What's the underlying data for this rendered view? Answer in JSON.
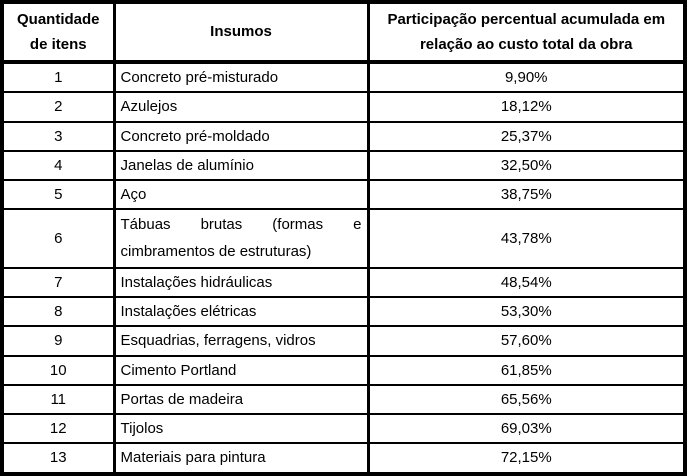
{
  "table": {
    "headers": [
      "Quantidade de itens",
      "Insumos",
      "Participação percentual acumulada em relação ao custo total da obra"
    ],
    "rows": [
      {
        "qty": "1",
        "insumo": "Concreto pré-misturado",
        "pct": "9,90%"
      },
      {
        "qty": "2",
        "insumo": "Azulejos",
        "pct": "18,12%"
      },
      {
        "qty": "3",
        "insumo": "Concreto pré-moldado",
        "pct": "25,37%"
      },
      {
        "qty": "4",
        "insumo": "Janelas de alumínio",
        "pct": "32,50%"
      },
      {
        "qty": "5",
        "insumo": "Aço",
        "pct": "38,75%"
      },
      {
        "qty": "6",
        "insumo": "Tábuas brutas (formas e cimbramentos de estruturas)",
        "pct": "43,78%"
      },
      {
        "qty": "7",
        "insumo": "Instalações hidráulicas",
        "pct": "48,54%"
      },
      {
        "qty": "8",
        "insumo": "Instalações elétricas",
        "pct": "53,30%"
      },
      {
        "qty": "9",
        "insumo": "Esquadrias, ferragens, vidros",
        "pct": "57,60%"
      },
      {
        "qty": "10",
        "insumo": "Cimento Portland",
        "pct": "61,85%"
      },
      {
        "qty": "11",
        "insumo": "Portas de madeira",
        "pct": "65,56%"
      },
      {
        "qty": "12",
        "insumo": "Tijolos",
        "pct": "69,03%"
      },
      {
        "qty": "13",
        "insumo": "Materiais para pintura",
        "pct": "72,15%"
      }
    ]
  }
}
